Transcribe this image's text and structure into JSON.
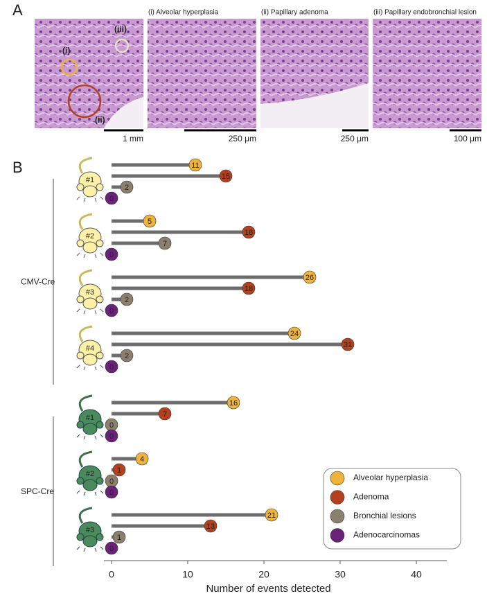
{
  "panel_a": {
    "label": "A",
    "overview": {
      "scale": "1 mm",
      "markers": [
        "(i)",
        "(ii)",
        "(iii)"
      ]
    },
    "images": [
      {
        "title": "(i) Alveolar hyperplasia",
        "scale": "250 μm"
      },
      {
        "title": "(ii) Papillary adenoma",
        "scale": "250 μm"
      },
      {
        "title": "(iii) Papillary endobronchial lesion",
        "scale": "100 μm"
      }
    ]
  },
  "chart_data": {
    "type": "lollipop",
    "panel_label": "B",
    "xlabel": "Number of events detected",
    "xlim": [
      -1,
      44
    ],
    "xticks": [
      0,
      10,
      20,
      30,
      40
    ],
    "groups": [
      {
        "name": "CMV-Cre",
        "color": "#fdf0a8",
        "categories": [
          "#1",
          "#2",
          "#3",
          "#4"
        ]
      },
      {
        "name": "SPC-Cre",
        "color": "#4a8a5c",
        "categories": [
          "#1",
          "#2",
          "#3"
        ]
      }
    ],
    "series": [
      {
        "name": "Alveolar hyperplasia",
        "color": "#efb33b",
        "values": [
          11,
          5,
          26,
          24,
          16,
          4,
          21
        ]
      },
      {
        "name": "Adenoma",
        "color": "#b3401e",
        "values": [
          15,
          18,
          18,
          31,
          7,
          1,
          13
        ]
      },
      {
        "name": "Bronchial lesions",
        "color": "#8c7f6e",
        "values": [
          2,
          7,
          2,
          2,
          0,
          0,
          1
        ]
      },
      {
        "name": "Adenocarcinomas",
        "color": "#6b237a",
        "values": [
          0,
          0,
          0,
          0,
          0,
          0,
          0
        ]
      }
    ]
  }
}
